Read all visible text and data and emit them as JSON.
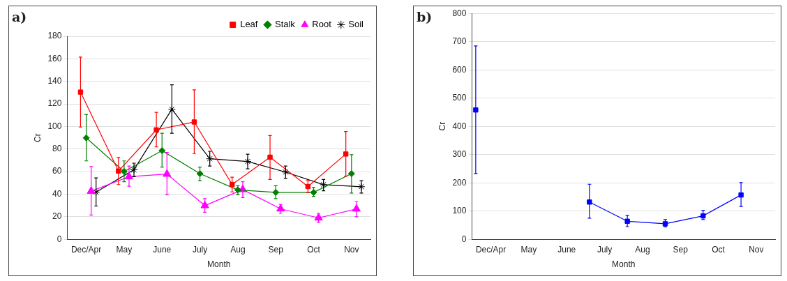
{
  "chart_data": [
    {
      "type": "line",
      "title": "a)",
      "xlabel": "Month",
      "ylabel": "Cr",
      "categories": [
        "Dec/Apr",
        "May",
        "June",
        "July",
        "Aug",
        "Sep",
        "Oct",
        "Nov"
      ],
      "ylim": [
        0,
        180
      ],
      "yticks": [
        0,
        20,
        40,
        60,
        80,
        100,
        120,
        140,
        160,
        180
      ],
      "grid": "y",
      "legend": "top right",
      "series": [
        {
          "name": "Leaf",
          "color": "#ff0000",
          "marker": "square",
          "values": [
            130.5,
            60.5,
            97,
            104,
            48.6,
            72.8,
            46.8,
            75.6
          ],
          "errors": [
            [
              99.5,
              161.5
            ],
            [
              48.5,
              72.5
            ],
            [
              82,
              112.5
            ],
            [
              76,
              132.5
            ],
            [
              42,
              55
            ],
            [
              53,
              92
            ],
            [
              41.5,
              52
            ],
            [
              56,
              95.5
            ]
          ]
        },
        {
          "name": "Stalk",
          "color": "#008000",
          "marker": "diamond",
          "values": [
            89.9,
            60.1,
            78.6,
            58.2,
            43.8,
            41.6,
            41.6,
            58.2
          ],
          "errors": [
            [
              69.5,
              110.5
            ],
            [
              51,
              69.5
            ],
            [
              64,
              94
            ],
            [
              52,
              64
            ],
            [
              39.5,
              47.5
            ],
            [
              36,
              47.5
            ],
            [
              38,
              46
            ],
            [
              41,
              75
            ]
          ]
        },
        {
          "name": "Root",
          "color": "#ff00ff",
          "marker": "triangle",
          "values": [
            42.7,
            55.5,
            57.8,
            29.9,
            44.1,
            27,
            19,
            26.9
          ],
          "errors": [
            [
              21.5,
              64.5
            ],
            [
              47,
              65
            ],
            [
              39.5,
              77
            ],
            [
              24,
              36
            ],
            [
              37,
              51
            ],
            [
              23,
              31
            ],
            [
              15,
              23
            ],
            [
              20,
              33.5
            ]
          ]
        },
        {
          "name": "Soil",
          "color": "#000000",
          "marker": "cross",
          "values": [
            41.8,
            61.7,
            115.3,
            71.4,
            69,
            59.6,
            48.4,
            46.6
          ],
          "errors": [
            [
              29.5,
              54.5
            ],
            [
              55.5,
              67.5
            ],
            [
              94,
              137
            ],
            [
              65,
              78
            ],
            [
              62.5,
              75.5
            ],
            [
              54,
              65
            ],
            [
              43,
              53
            ],
            [
              41,
              52
            ]
          ]
        }
      ]
    },
    {
      "type": "line",
      "title": "b)",
      "xlabel": "Month",
      "ylabel": "Cr",
      "categories": [
        "Dec/Apr",
        "May",
        "June",
        "July",
        "Aug",
        "Sep",
        "Oct",
        "Nov"
      ],
      "ylim": [
        0,
        800
      ],
      "yticks": [
        0,
        100,
        200,
        300,
        400,
        500,
        600,
        700,
        800
      ],
      "grid": "y",
      "series": [
        {
          "color": "#0000ff",
          "marker": "square",
          "values": [
            458,
            null,
            null,
            132,
            64,
            55,
            83,
            157
          ],
          "errors": [
            [
              233,
              685
            ],
            null,
            null,
            [
              75,
              195
            ],
            [
              45,
              85
            ],
            [
              44,
              70
            ],
            [
              70,
              102
            ],
            [
              116,
              201
            ]
          ]
        }
      ]
    }
  ]
}
